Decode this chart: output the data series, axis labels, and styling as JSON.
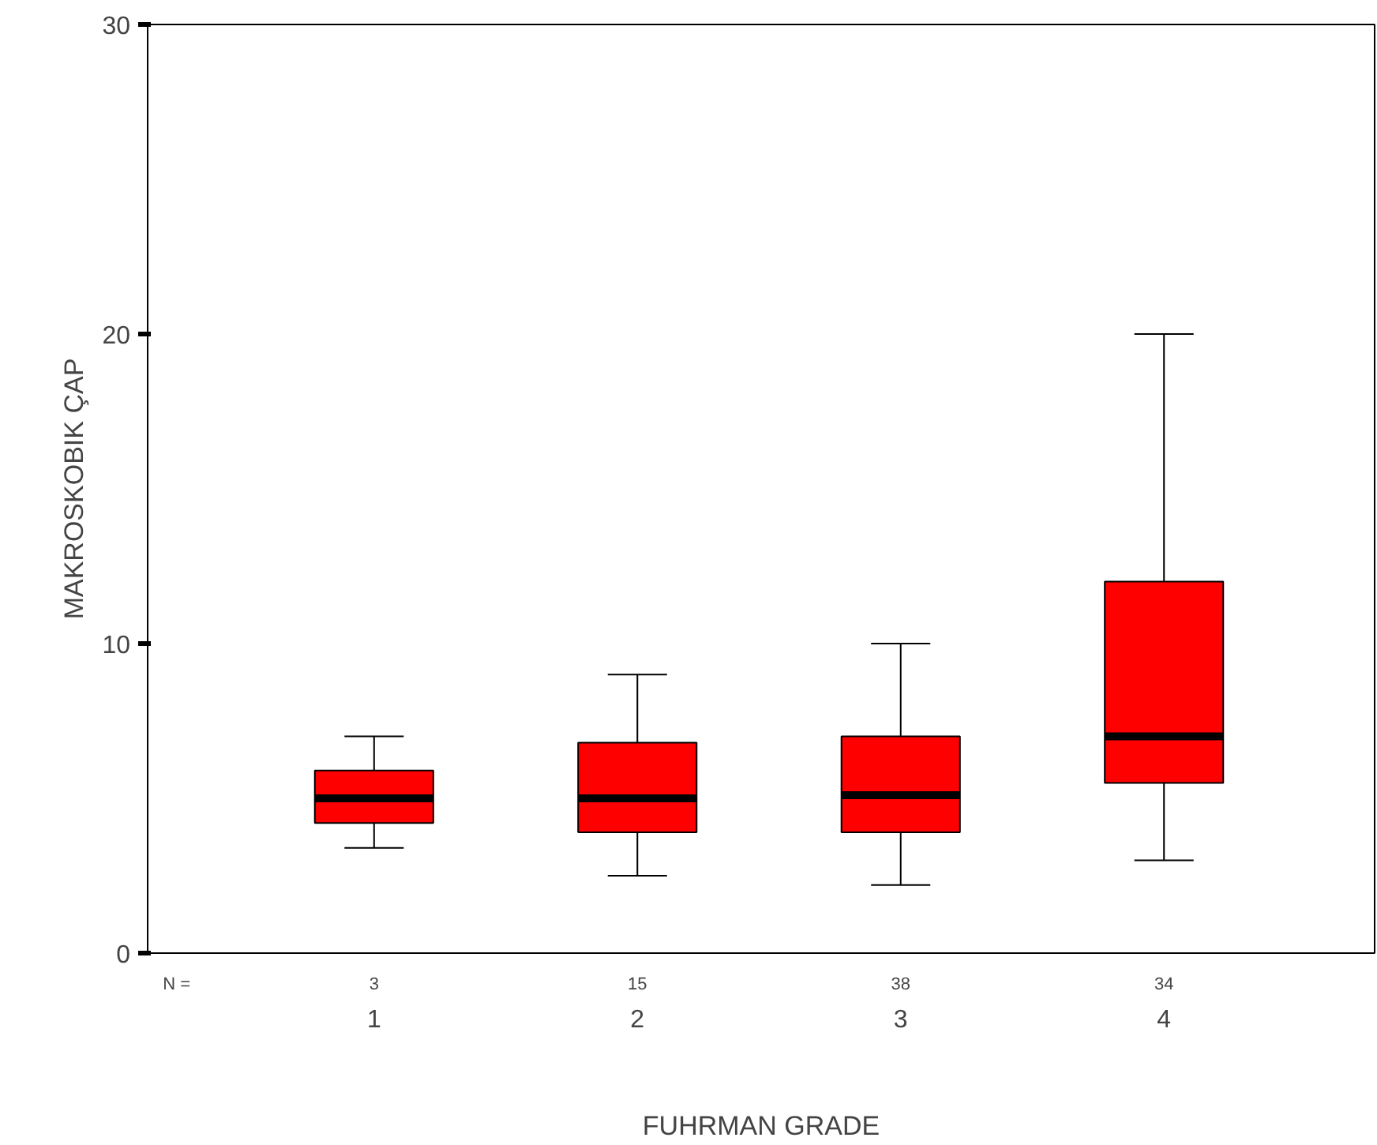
{
  "chart_data": {
    "type": "box",
    "xlabel": "FUHRMAN GRADE",
    "ylabel": "MAKROSKOBIK ÇAP",
    "categories": [
      "1",
      "2",
      "3",
      "4"
    ],
    "boxes": [
      {
        "low": 3.4,
        "q1": 4.2,
        "median": 5,
        "q3": 5.9,
        "high": 7
      },
      {
        "low": 2.5,
        "q1": 3.9,
        "median": 5,
        "q3": 6.8,
        "high": 9
      },
      {
        "low": 2.2,
        "q1": 3.9,
        "median": 5.1,
        "q3": 7,
        "high": 10
      },
      {
        "low": 3,
        "q1": 5.5,
        "median": 7,
        "q3": 12,
        "high": 20
      }
    ],
    "color": "#ff0000",
    "ylim": [
      0,
      30
    ],
    "yticks": [
      0,
      10,
      20,
      30
    ],
    "grid": false,
    "annotations": [
      "N =",
      "3",
      "15",
      "38",
      "34"
    ]
  }
}
